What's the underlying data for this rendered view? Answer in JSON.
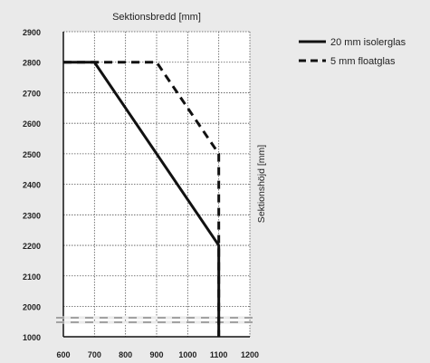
{
  "chart_data": {
    "type": "line",
    "title": "",
    "xlabel": "Sektionsbredd [mm]",
    "ylabel": "Sektionshöjd [mm]",
    "x_ticks": [
      600,
      700,
      800,
      900,
      1000,
      1100,
      1200
    ],
    "y_ticks": [
      1000,
      2000,
      2100,
      2200,
      2300,
      2400,
      2500,
      2600,
      2700,
      2800,
      2900
    ],
    "xlim": [
      600,
      1200
    ],
    "y_axis_note": "broken axis between 1000 and 2000",
    "grid": true,
    "legend_position": "top-right, outside plot",
    "series": [
      {
        "name": "20 mm isolerglas",
        "style": "solid",
        "color": "#111111",
        "points": [
          [
            600,
            2800
          ],
          [
            700,
            2800
          ],
          [
            1100,
            2200
          ],
          [
            1100,
            1000
          ]
        ]
      },
      {
        "name": "5 mm floatglas",
        "style": "dashed",
        "color": "#111111",
        "points": [
          [
            600,
            2800
          ],
          [
            900,
            2800
          ],
          [
            1100,
            2500
          ],
          [
            1100,
            1000
          ]
        ]
      }
    ]
  }
}
